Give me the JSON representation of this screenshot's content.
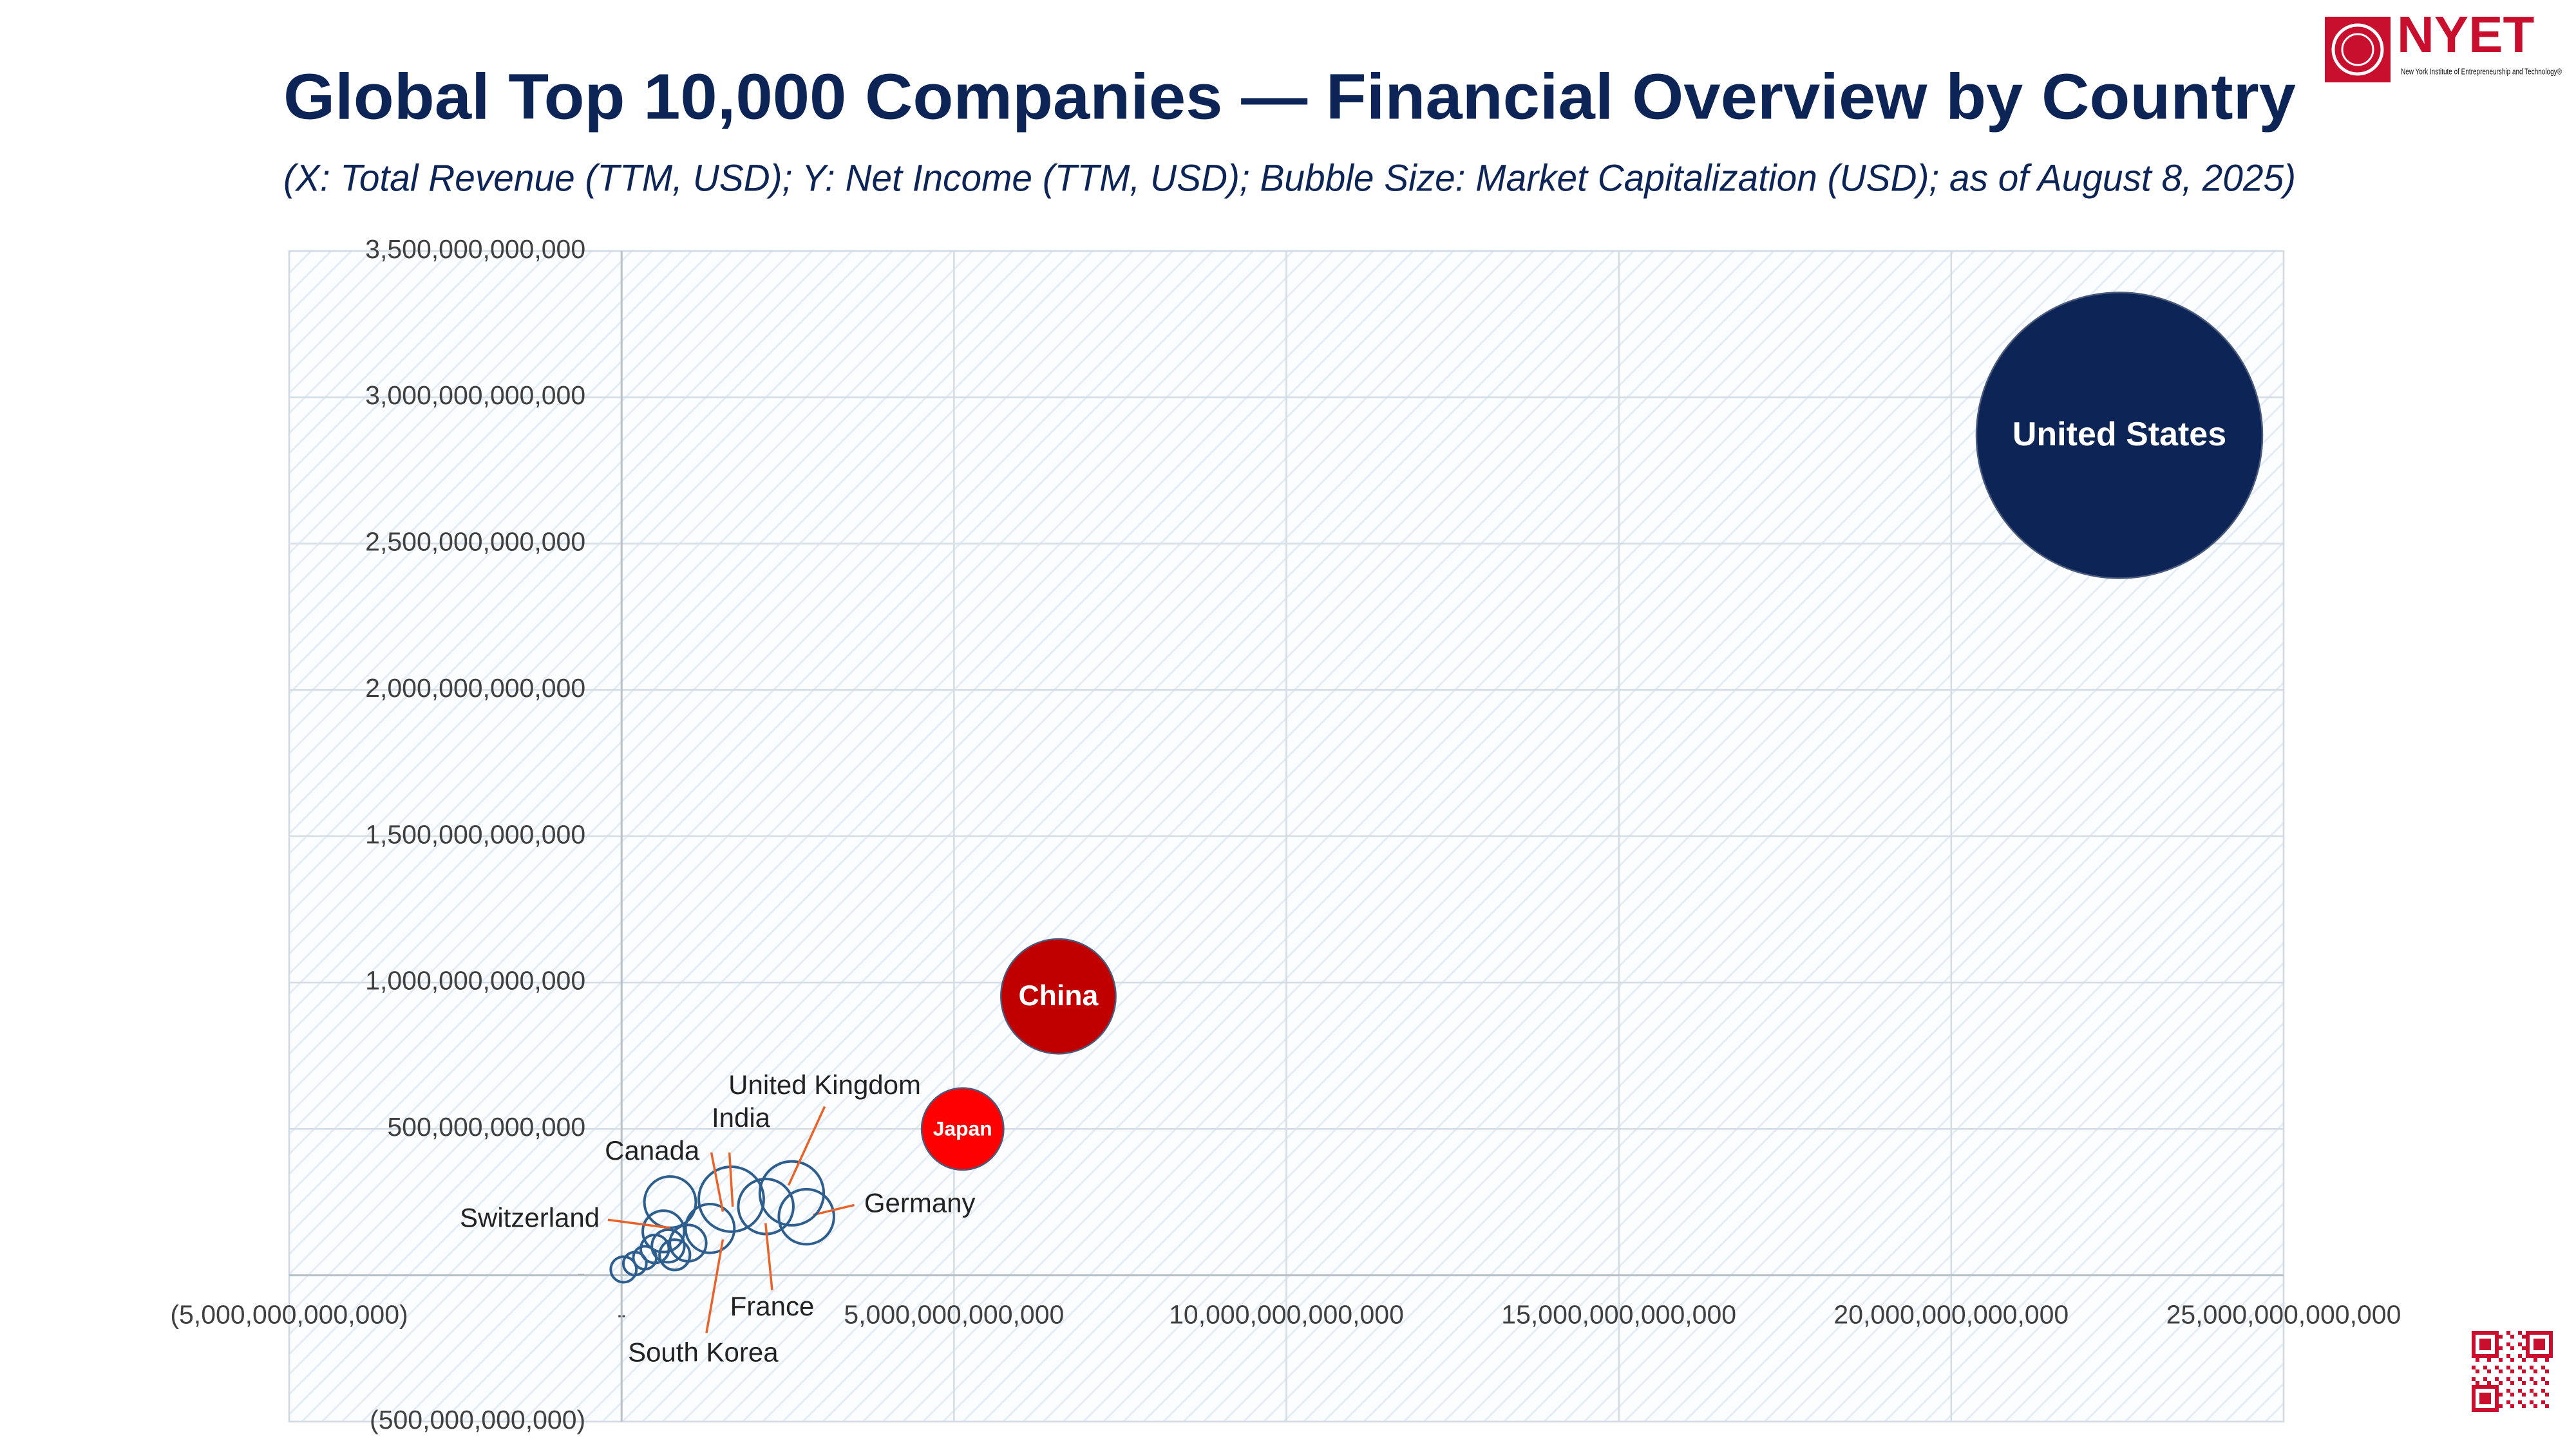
{
  "brand": {
    "name": "NYET",
    "tagline": "New York Institute of Entrepreneurship and Technology®"
  },
  "chart_data": {
    "type": "bubble",
    "title": "Global Top 10,000 Companies — Financial Overview by Country",
    "subtitle": "(X: Total Revenue (TTM, USD); Y: Net Income (TTM, USD); Bubble Size: Market Capitalization (USD); as of August 8, 2025)",
    "xlim": [
      -5000000000000,
      25000000000000
    ],
    "ylim": [
      -500000000000,
      3500000000000
    ],
    "xticks": [
      {
        "value": -5000000000000,
        "label": "(5,000,000,000,000)"
      },
      {
        "value": 0,
        "label": "-"
      },
      {
        "value": 5000000000000,
        "label": "5,000,000,000,000"
      },
      {
        "value": 10000000000000,
        "label": "10,000,000,000,000"
      },
      {
        "value": 15000000000000,
        "label": "15,000,000,000,000"
      },
      {
        "value": 20000000000000,
        "label": "20,000,000,000,000"
      },
      {
        "value": 25000000000000,
        "label": "25,000,000,000,000"
      }
    ],
    "yticks": [
      {
        "value": -500000000000,
        "label": "(500,000,000,000)"
      },
      {
        "value": 0,
        "label": "-"
      },
      {
        "value": 500000000000,
        "label": "500,000,000,000"
      },
      {
        "value": 1000000000000,
        "label": "1,000,000,000,000"
      },
      {
        "value": 1500000000000,
        "label": "1,500,000,000,000"
      },
      {
        "value": 2000000000000,
        "label": "2,000,000,000,000"
      },
      {
        "value": 2500000000000,
        "label": "2,500,000,000,000"
      },
      {
        "value": 3000000000000,
        "label": "3,000,000,000,000"
      },
      {
        "value": 3500000000000,
        "label": "3,500,000,000,000"
      }
    ],
    "grid": true,
    "points": [
      {
        "label": "United States",
        "x": 22530000000000,
        "y": 2870000000000,
        "size": 62000000000000,
        "color": "#0d2457",
        "filled": true
      },
      {
        "label": "China",
        "x": 6570000000000,
        "y": 953000000000,
        "size": 10000000000000,
        "color": "#c00000",
        "filled": true
      },
      {
        "label": "Japan",
        "x": 5130000000000,
        "y": 500000000000,
        "size": 5100000000000,
        "color": "#ff0000",
        "filled": true
      },
      {
        "label": "Germany",
        "x": 2780000000000,
        "y": 200000000000,
        "size": 2300000000000,
        "color": "#2e5e8e",
        "filled": false
      },
      {
        "label": "United Kingdom",
        "x": 2560000000000,
        "y": 280000000000,
        "size": 3100000000000,
        "color": "#2e5e8e",
        "filled": false
      },
      {
        "label": "France",
        "x": 2170000000000,
        "y": 235000000000,
        "size": 2300000000000,
        "color": "#2e5e8e",
        "filled": false
      },
      {
        "label": "India",
        "x": 1650000000000,
        "y": 260000000000,
        "size": 3200000000000,
        "color": "#2e5e8e",
        "filled": false
      },
      {
        "label": "South Korea",
        "x": 1330000000000,
        "y": 160000000000,
        "size": 1800000000000,
        "color": "#2e5e8e",
        "filled": false
      },
      {
        "label": "Canada",
        "x": 730000000000,
        "y": 250000000000,
        "size": 2000000000000,
        "color": "#2e5e8e",
        "filled": false
      },
      {
        "label": "Switzerland",
        "x": 630000000000,
        "y": 150000000000,
        "size": 1300000000000,
        "color": "#2e5e8e",
        "filled": false
      },
      {
        "label": null,
        "x": 30000000000,
        "y": 20000000000,
        "size": 500000000000,
        "color": "#2e5e8e",
        "filled": false
      },
      {
        "label": null,
        "x": 200000000000,
        "y": 40000000000,
        "size": 400000000000,
        "color": "#2e5e8e",
        "filled": false
      },
      {
        "label": null,
        "x": 350000000000,
        "y": 60000000000,
        "size": 400000000000,
        "color": "#2e5e8e",
        "filled": false
      },
      {
        "label": null,
        "x": 500000000000,
        "y": 90000000000,
        "size": 600000000000,
        "color": "#2e5e8e",
        "filled": false
      },
      {
        "label": null,
        "x": 700000000000,
        "y": 100000000000,
        "size": 800000000000,
        "color": "#2e5e8e",
        "filled": false
      },
      {
        "label": null,
        "x": 800000000000,
        "y": 70000000000,
        "size": 700000000000,
        "color": "#2e5e8e",
        "filled": false
      },
      {
        "label": null,
        "x": 1000000000000,
        "y": 110000000000,
        "size": 1000000000000,
        "color": "#2e5e8e",
        "filled": false
      }
    ]
  }
}
